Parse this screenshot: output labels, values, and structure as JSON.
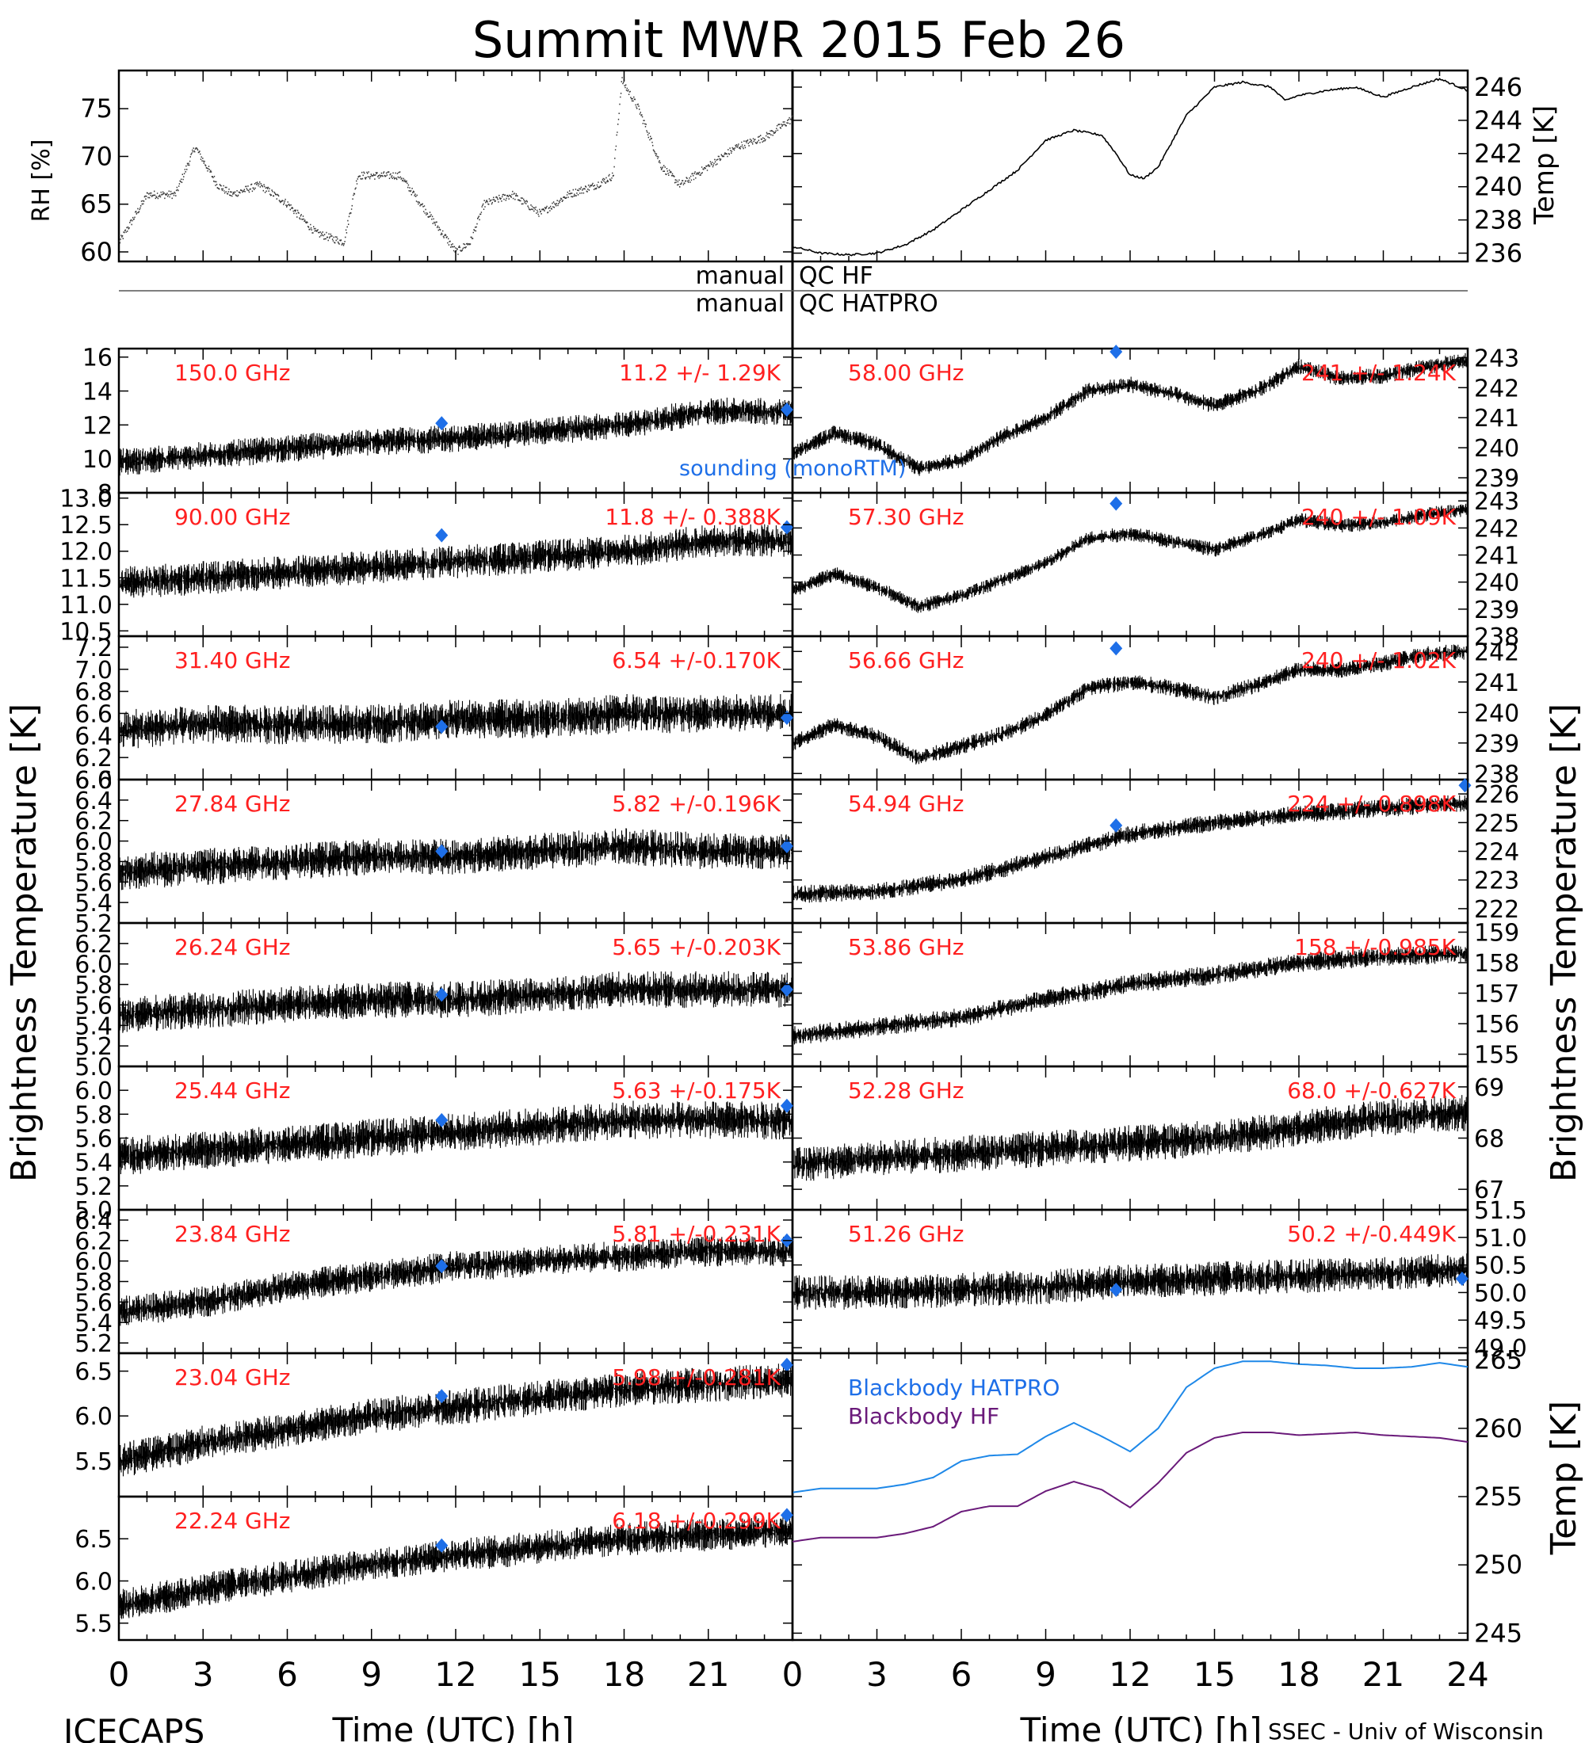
{
  "title": "Summit MWR 2015 Feb 26",
  "footer": {
    "left": "ICECAPS",
    "right": "SSEC - Univ of Wisconsin"
  },
  "xaxis": {
    "label": "Time (UTC) [h]",
    "ticks": [
      "0",
      "3",
      "6",
      "9",
      "12",
      "15",
      "18",
      "21",
      "24"
    ]
  },
  "ylabels": {
    "rh": "RH [%]",
    "temp": "Temp [K]",
    "bt_left": "Brightness Temperature [K]",
    "bt_right": "Brightness Temperature [K]",
    "bb": "Temp [K]"
  },
  "qc": {
    "manual_1": "manual",
    "manual_2": "manual",
    "hf": "QC HF",
    "hatpro": "QC HATPRO"
  },
  "legend": {
    "sounding": "sounding (monoRTM)",
    "bb_hatpro": "Blackbody HATPRO",
    "bb_hf": "Blackbody HF"
  },
  "colors": {
    "data": "#000000",
    "label": "#ff2020",
    "sounding": "#1e6fe8",
    "bb_hatpro": "#1e88e8",
    "bb_hf": "#6a1a7a"
  },
  "chart_data": [
    {
      "type": "line",
      "panel": "rh",
      "ylabel": "RH [%]",
      "ylim": [
        59,
        79
      ],
      "yticks": [
        60,
        65,
        70,
        75
      ],
      "x": [
        0,
        1,
        2,
        2.7,
        3.5,
        4,
        5,
        6,
        7,
        8,
        8.5,
        10,
        11,
        12,
        12.5,
        13,
        14,
        15,
        16,
        17,
        17.6,
        17.9,
        18.5,
        19.3,
        20,
        21,
        22,
        23,
        24
      ],
      "y": [
        61,
        66,
        66,
        71,
        67,
        66,
        67,
        65,
        62,
        61,
        68,
        68,
        64,
        60,
        61,
        65,
        66,
        64,
        66,
        67,
        68,
        78,
        75,
        69,
        67,
        69,
        71,
        72,
        74
      ],
      "style": "dots"
    },
    {
      "type": "line",
      "panel": "temp",
      "ylabel": "Temp [K]",
      "ylim": [
        235.5,
        247
      ],
      "yticks": [
        236,
        238,
        240,
        242,
        244,
        246
      ],
      "x": [
        0,
        1,
        2,
        3,
        4,
        5,
        6,
        7,
        8,
        9,
        10,
        11,
        11.5,
        12,
        12.5,
        13,
        14,
        15,
        16,
        17,
        17.5,
        18,
        19,
        20,
        21,
        22,
        23,
        24
      ],
      "y": [
        236.4,
        236,
        235.9,
        236,
        236.5,
        237.4,
        238.6,
        239.8,
        241,
        242.8,
        243.4,
        243.1,
        242,
        240.7,
        240.5,
        241.2,
        244.3,
        246,
        246.3,
        246,
        245.2,
        245.5,
        245.8,
        246,
        245.4,
        246,
        246.5,
        245.8
      ]
    },
    {
      "type": "line",
      "panel": "bt",
      "label": "150.0 GHz",
      "stat": "11.2 +/- 1.29K",
      "side": "left",
      "ylim": [
        8,
        16.5
      ],
      "yticks": [
        "8",
        "10",
        "12",
        "14",
        "16"
      ],
      "tickvals": [
        8,
        10,
        12,
        14,
        16
      ],
      "x": [
        0,
        3,
        6,
        9,
        12,
        15,
        18,
        21,
        24
      ],
      "y": [
        9.8,
        10.2,
        10.6,
        11.0,
        11.2,
        11.6,
        12.0,
        12.8,
        12.8
      ],
      "noise": 0.9,
      "sounding": [
        [
          11.5,
          12.1
        ],
        [
          23.8,
          12.9
        ]
      ]
    },
    {
      "type": "line",
      "panel": "bt",
      "label": "90.00 GHz",
      "stat": "11.8 +/- 0.388K",
      "side": "left",
      "ylim": [
        10.4,
        13.1
      ],
      "yticks": [
        "10.5",
        "11.0",
        "11.5",
        "12.0",
        "12.5",
        "13.0"
      ],
      "tickvals": [
        10.5,
        11,
        11.5,
        12,
        12.5,
        13
      ],
      "x": [
        0,
        3,
        6,
        9,
        12,
        15,
        18,
        21,
        24
      ],
      "y": [
        11.4,
        11.5,
        11.6,
        11.7,
        11.8,
        11.9,
        12.0,
        12.2,
        12.2
      ],
      "noise": 0.35,
      "sounding": [
        [
          11.5,
          12.3
        ],
        [
          23.8,
          12.45
        ]
      ]
    },
    {
      "type": "line",
      "panel": "bt",
      "label": "31.40 GHz",
      "stat": "6.54 +/-0.170K",
      "side": "left",
      "ylim": [
        6.0,
        7.3
      ],
      "yticks": [
        "6.0",
        "6.2",
        "6.4",
        "6.6",
        "6.8",
        "7.0",
        "7.2"
      ],
      "tickvals": [
        6,
        6.2,
        6.4,
        6.6,
        6.8,
        7,
        7.2
      ],
      "x": [
        0,
        3,
        6,
        9,
        12,
        15,
        18,
        21,
        24
      ],
      "y": [
        6.45,
        6.5,
        6.5,
        6.5,
        6.55,
        6.55,
        6.6,
        6.6,
        6.6
      ],
      "noise": 0.2,
      "sounding": [
        [
          11.5,
          6.48
        ],
        [
          23.8,
          6.56
        ]
      ]
    },
    {
      "type": "line",
      "panel": "bt",
      "label": "27.84 GHz",
      "stat": "5.82 +/-0.196K",
      "side": "left",
      "ylim": [
        5.2,
        6.6
      ],
      "yticks": [
        "5.2",
        "5.4",
        "5.6",
        "5.8",
        "6.0",
        "6.2",
        "6.4",
        "6.6"
      ],
      "tickvals": [
        5.2,
        5.4,
        5.6,
        5.8,
        6,
        6.2,
        6.4,
        6.6
      ],
      "x": [
        0,
        3,
        6,
        9,
        12,
        15,
        18,
        21,
        24
      ],
      "y": [
        5.7,
        5.75,
        5.8,
        5.85,
        5.85,
        5.9,
        5.95,
        5.9,
        5.9
      ],
      "noise": 0.2,
      "sounding": [
        [
          11.5,
          5.9
        ],
        [
          23.8,
          5.95
        ]
      ]
    },
    {
      "type": "line",
      "panel": "bt",
      "label": "26.24 GHz",
      "stat": "5.65 +/-0.203K",
      "side": "left",
      "ylim": [
        5.0,
        6.4
      ],
      "yticks": [
        "5.0",
        "5.2",
        "5.4",
        "5.6",
        "5.8",
        "6.0",
        "6.2"
      ],
      "tickvals": [
        5,
        5.2,
        5.4,
        5.6,
        5.8,
        6,
        6.2
      ],
      "x": [
        0,
        3,
        6,
        9,
        12,
        15,
        18,
        21,
        24
      ],
      "y": [
        5.5,
        5.55,
        5.6,
        5.65,
        5.65,
        5.7,
        5.75,
        5.75,
        5.75
      ],
      "noise": 0.2,
      "sounding": [
        [
          11.5,
          5.7
        ],
        [
          23.8,
          5.75
        ]
      ]
    },
    {
      "type": "line",
      "panel": "bt",
      "label": "25.44 GHz",
      "stat": "5.63 +/-0.175K",
      "side": "left",
      "ylim": [
        5.0,
        6.2
      ],
      "yticks": [
        "5.0",
        "5.2",
        "5.4",
        "5.6",
        "5.8",
        "6.0"
      ],
      "tickvals": [
        5,
        5.2,
        5.4,
        5.6,
        5.8,
        6
      ],
      "x": [
        0,
        3,
        6,
        9,
        12,
        15,
        18,
        21,
        24
      ],
      "y": [
        5.45,
        5.5,
        5.55,
        5.6,
        5.65,
        5.7,
        5.75,
        5.75,
        5.75
      ],
      "noise": 0.18,
      "sounding": [
        [
          11.5,
          5.75
        ],
        [
          23.8,
          5.87
        ]
      ]
    },
    {
      "type": "line",
      "panel": "bt",
      "label": "23.84 GHz",
      "stat": "5.81 +/-0.231K",
      "side": "left",
      "ylim": [
        5.1,
        6.5
      ],
      "yticks": [
        "5.2",
        "5.4",
        "5.6",
        "5.8",
        "6.0",
        "6.2",
        "6.4"
      ],
      "tickvals": [
        5.2,
        5.4,
        5.6,
        5.8,
        6,
        6.2,
        6.4
      ],
      "x": [
        0,
        3,
        6,
        9,
        12,
        15,
        18,
        21,
        24
      ],
      "y": [
        5.5,
        5.6,
        5.75,
        5.85,
        5.95,
        6.0,
        6.05,
        6.1,
        6.1
      ],
      "noise": 0.17,
      "sounding": [
        [
          11.5,
          5.95
        ],
        [
          23.8,
          6.2
        ]
      ]
    },
    {
      "type": "line",
      "panel": "bt",
      "label": "23.04 GHz",
      "stat": "5.98 +/-0.281K",
      "side": "left",
      "ylim": [
        5.1,
        6.7
      ],
      "yticks": [
        "5.5",
        "6.0",
        "6.5"
      ],
      "tickvals": [
        5.5,
        6,
        6.5
      ],
      "x": [
        0,
        3,
        6,
        9,
        12,
        15,
        18,
        21,
        24
      ],
      "y": [
        5.5,
        5.7,
        5.85,
        6.0,
        6.1,
        6.2,
        6.3,
        6.35,
        6.4
      ],
      "noise": 0.22,
      "sounding": [
        [
          11.5,
          6.22
        ],
        [
          23.8,
          6.57
        ]
      ]
    },
    {
      "type": "line",
      "panel": "bt",
      "label": "22.24 GHz",
      "stat": "6.18 +/-0.299K",
      "side": "left",
      "ylim": [
        5.3,
        7.0
      ],
      "yticks": [
        "5.5",
        "6.0",
        "6.5"
      ],
      "tickvals": [
        5.5,
        6,
        6.5
      ],
      "x": [
        0,
        3,
        6,
        9,
        12,
        15,
        18,
        21,
        24
      ],
      "y": [
        5.7,
        5.9,
        6.05,
        6.2,
        6.3,
        6.4,
        6.5,
        6.55,
        6.6
      ],
      "noise": 0.22,
      "sounding": [
        [
          11.5,
          6.42
        ],
        [
          23.8,
          6.78
        ]
      ]
    },
    {
      "type": "line",
      "panel": "bt",
      "label": "58.00 GHz",
      "stat": "241 +/- 1.24K",
      "side": "right",
      "ylim": [
        238.5,
        243.3
      ],
      "yticks": [
        "239",
        "240",
        "241",
        "242",
        "243"
      ],
      "tickvals": [
        239,
        240,
        241,
        242,
        243
      ],
      "x": [
        0,
        1.5,
        3,
        4.5,
        6,
        7.5,
        9,
        10.5,
        12,
        13.5,
        15,
        16.5,
        18,
        19.5,
        21,
        22.5,
        24
      ],
      "y": [
        239.8,
        240.5,
        240.1,
        239.3,
        239.6,
        240.4,
        241,
        241.9,
        242.1,
        241.8,
        241.4,
        241.9,
        242.7,
        242.3,
        242.4,
        242.7,
        242.9
      ],
      "noise": 0.3,
      "sounding": [
        [
          11.5,
          243.2
        ]
      ]
    },
    {
      "type": "line",
      "panel": "bt",
      "label": "57.30 GHz",
      "stat": "240 +/- 1.09K",
      "side": "right",
      "ylim": [
        238,
        243.3
      ],
      "yticks": [
        "238",
        "239",
        "240",
        "241",
        "242",
        "243"
      ],
      "tickvals": [
        238,
        239,
        240,
        241,
        242,
        243
      ],
      "x": [
        0,
        1.5,
        3,
        4.5,
        6,
        7.5,
        9,
        10.5,
        12,
        13.5,
        15,
        16.5,
        18,
        19.5,
        21,
        22.5,
        24
      ],
      "y": [
        239.7,
        240.3,
        239.8,
        239.1,
        239.5,
        240.1,
        240.7,
        241.6,
        241.8,
        241.5,
        241.2,
        241.7,
        242.3,
        242.1,
        242.2,
        242.5,
        242.7
      ],
      "noise": 0.3,
      "sounding": [
        [
          11.5,
          242.9
        ]
      ]
    },
    {
      "type": "line",
      "panel": "bt",
      "label": "56.66 GHz",
      "stat": "240 +/- 1.02K",
      "side": "right",
      "ylim": [
        237.8,
        242.5
      ],
      "yticks": [
        "238",
        "239",
        "240",
        "241",
        "242"
      ],
      "tickvals": [
        238,
        239,
        240,
        241,
        242
      ],
      "x": [
        0,
        1.5,
        3,
        4.5,
        6,
        7.5,
        9,
        10.5,
        12,
        13.5,
        15,
        16.5,
        18,
        19.5,
        21,
        22.5,
        24
      ],
      "y": [
        239,
        239.6,
        239.2,
        238.5,
        238.9,
        239.3,
        239.9,
        240.8,
        241,
        240.8,
        240.5,
        240.9,
        241.4,
        241.4,
        241.6,
        241.9,
        242
      ],
      "noise": 0.3,
      "sounding": [
        [
          11.5,
          242.1
        ]
      ]
    },
    {
      "type": "line",
      "panel": "bt",
      "label": "54.94 GHz",
      "stat": "224 +/- 0.898K",
      "side": "right",
      "ylim": [
        221.5,
        226.5
      ],
      "yticks": [
        "222",
        "223",
        "224",
        "225",
        "226"
      ],
      "tickvals": [
        222,
        223,
        224,
        225,
        226
      ],
      "x": [
        0,
        3,
        6,
        9,
        12,
        15,
        18,
        21,
        24
      ],
      "y": [
        222.5,
        222.6,
        223,
        223.8,
        224.6,
        225,
        225.3,
        225.5,
        225.7
      ],
      "noise": 0.35,
      "sounding": [
        [
          11.5,
          224.9
        ],
        [
          23.9,
          226.3
        ]
      ]
    },
    {
      "type": "line",
      "panel": "bt",
      "label": "53.86 GHz",
      "stat": "158 +/-0.985K",
      "side": "right",
      "ylim": [
        154.6,
        159.3
      ],
      "yticks": [
        "155",
        "156",
        "157",
        "158",
        "159"
      ],
      "tickvals": [
        155,
        156,
        157,
        158,
        159
      ],
      "x": [
        0,
        3,
        6,
        9,
        12,
        15,
        18,
        21,
        24
      ],
      "y": [
        155.6,
        155.9,
        156.2,
        156.8,
        157.3,
        157.6,
        158,
        158.2,
        158.3
      ],
      "noise": 0.35,
      "sounding": []
    },
    {
      "type": "line",
      "panel": "bt",
      "label": "52.28 GHz",
      "stat": "68.0 +/-0.627K",
      "side": "right",
      "ylim": [
        66.6,
        69.4
      ],
      "yticks": [
        "67",
        "68",
        "69"
      ],
      "tickvals": [
        67,
        68,
        69
      ],
      "x": [
        0,
        3,
        6,
        9,
        12,
        15,
        18,
        21,
        24
      ],
      "y": [
        67.5,
        67.6,
        67.7,
        67.8,
        67.9,
        68.0,
        68.2,
        68.4,
        68.5
      ],
      "noise": 0.4,
      "sounding": []
    },
    {
      "type": "line",
      "panel": "bt",
      "label": "51.26 GHz",
      "stat": "50.2 +/-0.449K",
      "side": "right",
      "ylim": [
        48.9,
        51.5
      ],
      "yticks": [
        "49.0",
        "49.5",
        "50.0",
        "50.5",
        "51.0",
        "51.5"
      ],
      "tickvals": [
        49,
        49.5,
        50,
        50.5,
        51,
        51.5
      ],
      "x": [
        0,
        3,
        6,
        9,
        12,
        15,
        18,
        21,
        24
      ],
      "y": [
        50.0,
        50.0,
        50.05,
        50.1,
        50.2,
        50.25,
        50.3,
        50.35,
        50.4
      ],
      "noise": 0.35,
      "sounding": [
        [
          11.5,
          50.05
        ],
        [
          23.8,
          50.25
        ]
      ]
    },
    {
      "type": "line",
      "panel": "bb",
      "ylabel": "Temp [K]",
      "ylim": [
        244.5,
        265.5
      ],
      "yticks": [
        245,
        250,
        255,
        260,
        265
      ],
      "series": [
        {
          "name": "Blackbody HATPRO",
          "x": [
            0,
            1,
            2,
            3,
            4,
            5,
            6,
            7,
            8,
            9,
            10,
            11,
            12,
            13,
            14,
            15,
            16,
            17,
            18,
            19,
            20,
            21,
            22,
            23,
            24
          ],
          "y": [
            255.3,
            255.6,
            255.6,
            255.6,
            255.9,
            256.4,
            257.6,
            258.0,
            258.1,
            259.4,
            260.4,
            259.4,
            258.3,
            260,
            263,
            264.4,
            264.9,
            264.9,
            264.7,
            264.6,
            264.4,
            264.4,
            264.5,
            264.8,
            264.5
          ]
        },
        {
          "name": "Blackbody HF",
          "x": [
            0,
            1,
            2,
            3,
            4,
            5,
            6,
            7,
            8,
            9,
            10,
            11,
            12,
            13,
            14,
            15,
            16,
            17,
            18,
            19,
            20,
            21,
            22,
            23,
            24
          ],
          "y": [
            251.7,
            252,
            252,
            252,
            252.3,
            252.8,
            253.9,
            254.3,
            254.3,
            255.4,
            256.1,
            255.5,
            254.2,
            256,
            258.2,
            259.3,
            259.7,
            259.7,
            259.5,
            259.6,
            259.7,
            259.5,
            259.4,
            259.3,
            259
          ]
        }
      ]
    }
  ]
}
